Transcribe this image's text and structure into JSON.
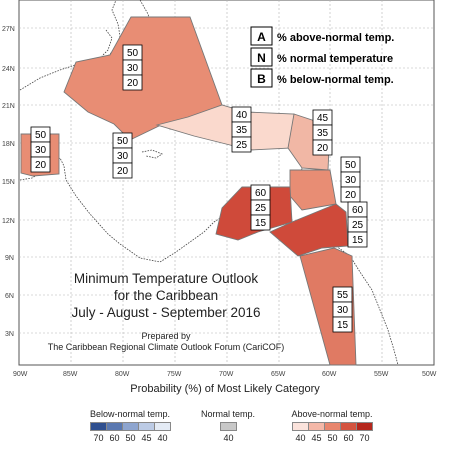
{
  "map": {
    "title_lines": [
      "Minimum Temperature Outlook",
      "for the Caribbean",
      "July - August - September 2016"
    ],
    "prepared_lines": [
      "Prepared by",
      "The Caribbean Regional Climate Outlook Forum (CariCOF)"
    ],
    "lat_ticks": [
      "27N",
      "24N",
      "21N",
      "18N",
      "15N",
      "12N",
      "9N",
      "6N",
      "3N"
    ],
    "lon_ticks": [
      "90W",
      "85W",
      "80W",
      "75W",
      "70W",
      "65W",
      "60W",
      "55W",
      "50W"
    ],
    "category_key": [
      {
        "letter": "A",
        "text": "% above-normal temp."
      },
      {
        "letter": "N",
        "text": "% normal temperature"
      },
      {
        "letter": "B",
        "text": "% below-normal temp."
      }
    ],
    "zone_colors": {
      "above_50": "#e88d74",
      "above_45": "#f1b7a5",
      "above_40": "#fad9cd",
      "above_60": "#cf4a3a",
      "above_55": "#e07a63"
    },
    "probability_boxes": [
      {
        "above": "50",
        "normal": "30",
        "below": "20"
      },
      {
        "above": "50",
        "normal": "30",
        "below": "20"
      },
      {
        "above": "50",
        "normal": "30",
        "below": "20"
      },
      {
        "above": "40",
        "normal": "35",
        "below": "25"
      },
      {
        "above": "45",
        "normal": "35",
        "below": "20"
      },
      {
        "above": "50",
        "normal": "30",
        "below": "20"
      },
      {
        "above": "60",
        "normal": "25",
        "below": "15"
      },
      {
        "above": "60",
        "normal": "25",
        "below": "15"
      },
      {
        "above": "55",
        "normal": "30",
        "below": "15"
      }
    ]
  },
  "legend": {
    "title": "Probability (%) of Most Likely Category",
    "below": {
      "label": "Below-normal temp.",
      "values": [
        "70",
        "60",
        "50",
        "45",
        "40"
      ],
      "colors": [
        "#2f4f8f",
        "#5a78b0",
        "#8ea5cf",
        "#bccbe5",
        "#e4ebf5"
      ]
    },
    "normal": {
      "label": "Normal temp.",
      "values": [
        "40"
      ],
      "colors": [
        "#c8c8c8"
      ]
    },
    "above": {
      "label": "Above-normal temp.",
      "values": [
        "40",
        "45",
        "50",
        "60",
        "70"
      ],
      "colors": [
        "#fbe3dc",
        "#f4b8a8",
        "#e8866e",
        "#d45440",
        "#b5271d"
      ]
    }
  }
}
